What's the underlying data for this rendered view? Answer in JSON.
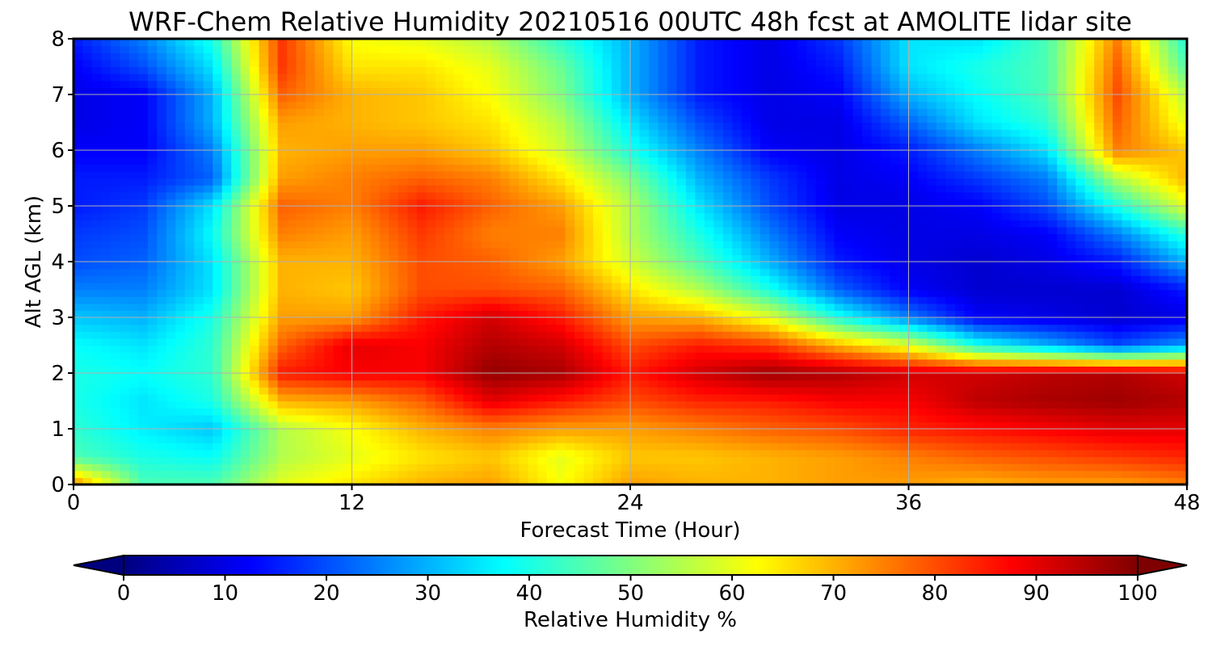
{
  "chart_data": {
    "type": "heatmap",
    "title": "WRF-Chem Relative Humidity 20210516 00UTC 48h fcst at AMOLITE lidar site",
    "xlabel": "Forecast Time (Hour)",
    "ylabel": "Alt AGL (km)",
    "xlim": [
      0,
      48
    ],
    "ylim": [
      0,
      8
    ],
    "xticks": [
      0,
      12,
      24,
      36,
      48
    ],
    "yticks": [
      0,
      1,
      2,
      3,
      4,
      5,
      6,
      7,
      8
    ],
    "grid": true,
    "colorbar": {
      "label": "Relative Humidity %",
      "min": 0,
      "max": 100,
      "ticks": [
        0,
        10,
        20,
        30,
        40,
        50,
        60,
        70,
        80,
        90,
        100
      ],
      "extend": "both",
      "colormap": "jet",
      "orientation": "horizontal",
      "position": "bottom"
    },
    "x": [
      0,
      3,
      6,
      9,
      12,
      15,
      18,
      21,
      24,
      27,
      30,
      33,
      36,
      39,
      42,
      45,
      48
    ],
    "y": [
      0,
      0.5,
      1,
      1.5,
      2,
      2.5,
      3,
      3.5,
      4,
      4.5,
      5,
      5.5,
      6,
      6.5,
      7,
      7.5,
      8
    ],
    "values": [
      [
        75,
        45,
        45,
        60,
        65,
        70,
        72,
        62,
        72,
        70,
        70,
        72,
        72,
        70,
        72,
        72,
        75
      ],
      [
        45,
        40,
        38,
        55,
        60,
        65,
        68,
        60,
        68,
        68,
        70,
        72,
        75,
        78,
        80,
        82,
        84
      ],
      [
        42,
        36,
        32,
        55,
        62,
        70,
        75,
        72,
        72,
        75,
        78,
        80,
        84,
        86,
        88,
        90,
        90
      ],
      [
        40,
        35,
        40,
        70,
        72,
        78,
        90,
        85,
        80,
        84,
        85,
        88,
        88,
        94,
        96,
        97,
        95
      ],
      [
        40,
        38,
        42,
        85,
        88,
        88,
        98,
        96,
        85,
        92,
        97,
        95,
        92,
        92,
        94,
        95,
        92
      ],
      [
        38,
        35,
        42,
        78,
        90,
        88,
        95,
        92,
        80,
        85,
        82,
        70,
        60,
        40,
        30,
        20,
        28
      ],
      [
        32,
        30,
        40,
        72,
        72,
        85,
        92,
        85,
        72,
        70,
        60,
        40,
        25,
        12,
        10,
        8,
        10
      ],
      [
        25,
        25,
        35,
        70,
        68,
        80,
        80,
        78,
        65,
        55,
        40,
        22,
        12,
        8,
        8,
        8,
        15
      ],
      [
        20,
        22,
        35,
        70,
        70,
        80,
        78,
        72,
        58,
        45,
        30,
        15,
        10,
        8,
        10,
        15,
        30
      ],
      [
        18,
        20,
        38,
        75,
        72,
        82,
        75,
        75,
        55,
        40,
        25,
        12,
        10,
        10,
        12,
        25,
        42
      ],
      [
        15,
        18,
        35,
        78,
        75,
        85,
        78,
        72,
        55,
        35,
        20,
        10,
        10,
        12,
        20,
        40,
        60
      ],
      [
        15,
        15,
        22,
        72,
        75,
        78,
        75,
        65,
        50,
        30,
        18,
        10,
        12,
        18,
        25,
        55,
        70
      ],
      [
        12,
        12,
        25,
        70,
        72,
        72,
        68,
        58,
        40,
        25,
        12,
        10,
        15,
        25,
        35,
        75,
        68
      ],
      [
        10,
        12,
        30,
        72,
        70,
        68,
        65,
        55,
        35,
        20,
        10,
        10,
        22,
        35,
        42,
        78,
        60
      ],
      [
        10,
        12,
        30,
        78,
        70,
        68,
        62,
        50,
        30,
        15,
        10,
        12,
        30,
        38,
        45,
        80,
        55
      ],
      [
        12,
        20,
        35,
        82,
        65,
        65,
        60,
        48,
        30,
        15,
        10,
        15,
        35,
        40,
        45,
        78,
        45
      ],
      [
        15,
        25,
        40,
        82,
        62,
        60,
        55,
        42,
        30,
        15,
        10,
        18,
        35,
        35,
        45,
        75,
        40
      ]
    ]
  }
}
